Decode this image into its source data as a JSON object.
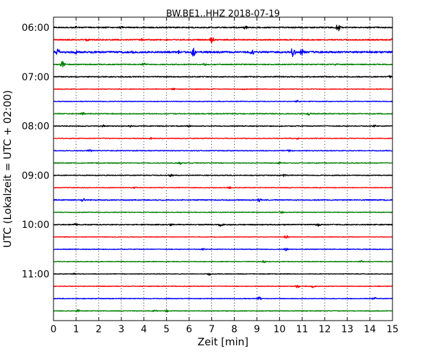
{
  "chart_data": {
    "type": "line",
    "title": "BW.BE1..HHZ 2018-07-19",
    "xlabel": "Zeit  [min]",
    "ylabel": "UTC (Lokalzeit = UTC + 02:00)",
    "xlim": [
      0,
      15
    ],
    "x_ticks": [
      "0",
      "1",
      "2",
      "3",
      "4",
      "5",
      "6",
      "7",
      "8",
      "9",
      "10",
      "11",
      "12",
      "13",
      "14",
      "15"
    ],
    "y_tick_labels": [
      "06:00",
      "07:00",
      "08:00",
      "09:00",
      "10:00",
      "11:00"
    ],
    "grid": "vertical dotted",
    "series_colors": [
      "#000000",
      "#ff0000",
      "#0000ff",
      "#008000"
    ],
    "traces": [
      {
        "start": "06:00",
        "color": "#000000",
        "amplitude": 0.12,
        "events": [
          [
            1.0,
            0.3
          ],
          [
            2.3,
            0.2
          ],
          [
            3.0,
            0.25
          ],
          [
            8.5,
            0.4
          ],
          [
            12.6,
            0.8
          ]
        ]
      },
      {
        "start": "06:15",
        "color": "#ff0000",
        "amplitude": 0.12,
        "events": [
          [
            1.5,
            0.4
          ],
          [
            3.9,
            0.3
          ],
          [
            7.0,
            0.6
          ],
          [
            15.0,
            0.3
          ]
        ]
      },
      {
        "start": "06:30",
        "color": "#0000ff",
        "amplitude": 0.18,
        "events": [
          [
            0.2,
            0.7
          ],
          [
            1.0,
            0.4
          ],
          [
            3.5,
            0.3
          ],
          [
            5.5,
            0.5
          ],
          [
            6.2,
            0.9
          ],
          [
            8.8,
            0.5
          ],
          [
            10.6,
            1.0
          ],
          [
            11.0,
            0.8
          ],
          [
            14.0,
            0.3
          ]
        ]
      },
      {
        "start": "06:45",
        "color": "#008000",
        "amplitude": 0.1,
        "events": [
          [
            0.4,
            0.7
          ],
          [
            4.0,
            0.3
          ],
          [
            6.7,
            0.3
          ],
          [
            12.5,
            0.2
          ]
        ]
      },
      {
        "start": "07:00",
        "color": "#000000",
        "amplitude": 0.1,
        "events": [
          [
            14.9,
            0.25
          ]
        ]
      },
      {
        "start": "07:15",
        "color": "#ff0000",
        "amplitude": 0.07,
        "events": [
          [
            5.3,
            0.2
          ],
          [
            8.4,
            0.2
          ]
        ]
      },
      {
        "start": "07:30",
        "color": "#0000ff",
        "amplitude": 0.07,
        "events": [
          [
            10.8,
            0.35
          ]
        ]
      },
      {
        "start": "07:45",
        "color": "#008000",
        "amplitude": 0.09,
        "events": [
          [
            1.3,
            0.3
          ],
          [
            11.3,
            0.35
          ]
        ]
      },
      {
        "start": "08:00",
        "color": "#000000",
        "amplitude": 0.09,
        "events": [
          [
            2.2,
            0.25
          ],
          [
            3.4,
            0.25
          ],
          [
            6.0,
            0.25
          ],
          [
            14.2,
            0.25
          ]
        ]
      },
      {
        "start": "08:15",
        "color": "#ff0000",
        "amplitude": 0.07,
        "events": [
          [
            4.3,
            0.2
          ],
          [
            10.8,
            0.2
          ]
        ]
      },
      {
        "start": "08:30",
        "color": "#0000ff",
        "amplitude": 0.08,
        "events": [
          [
            1.6,
            0.3
          ],
          [
            10.4,
            0.25
          ]
        ]
      },
      {
        "start": "08:45",
        "color": "#008000",
        "amplitude": 0.08,
        "events": [
          [
            5.6,
            0.3
          ],
          [
            10.0,
            0.25
          ]
        ]
      },
      {
        "start": "09:00",
        "color": "#000000",
        "amplitude": 0.08,
        "events": [
          [
            5.2,
            0.3
          ],
          [
            10.2,
            0.3
          ]
        ]
      },
      {
        "start": "09:15",
        "color": "#ff0000",
        "amplitude": 0.07,
        "events": [
          [
            3.6,
            0.2
          ],
          [
            7.8,
            0.25
          ]
        ]
      },
      {
        "start": "09:30",
        "color": "#0000ff",
        "amplitude": 0.1,
        "events": [
          [
            1.3,
            0.4
          ],
          [
            9.1,
            0.4
          ]
        ]
      },
      {
        "start": "09:45",
        "color": "#008000",
        "amplitude": 0.07,
        "events": [
          [
            10.1,
            0.3
          ]
        ]
      },
      {
        "start": "10:00",
        "color": "#000000",
        "amplitude": 0.1,
        "events": [
          [
            1.0,
            0.3
          ],
          [
            5.2,
            0.3
          ],
          [
            7.4,
            0.45
          ],
          [
            11.7,
            0.45
          ]
        ]
      },
      {
        "start": "10:15",
        "color": "#ff0000",
        "amplitude": 0.06,
        "events": [
          [
            10.3,
            0.35
          ]
        ]
      },
      {
        "start": "10:30",
        "color": "#0000ff",
        "amplitude": 0.07,
        "events": [
          [
            6.6,
            0.25
          ],
          [
            10.3,
            0.35
          ]
        ]
      },
      {
        "start": "10:45",
        "color": "#008000",
        "amplitude": 0.07,
        "events": [
          [
            9.3,
            0.25
          ],
          [
            13.6,
            0.3
          ]
        ]
      },
      {
        "start": "11:00",
        "color": "#000000",
        "amplitude": 0.06,
        "events": [
          [
            0.9,
            0.2
          ],
          [
            6.9,
            0.3
          ]
        ]
      },
      {
        "start": "11:15",
        "color": "#ff0000",
        "amplitude": 0.07,
        "events": [
          [
            10.8,
            0.35
          ],
          [
            11.5,
            0.3
          ]
        ]
      },
      {
        "start": "11:30",
        "color": "#0000ff",
        "amplitude": 0.07,
        "events": [
          [
            9.1,
            0.35
          ],
          [
            14.2,
            0.3
          ]
        ]
      },
      {
        "start": "11:45",
        "color": "#008000",
        "amplitude": 0.07,
        "events": [
          [
            1.1,
            0.3
          ],
          [
            4.5,
            0.25
          ],
          [
            5.0,
            0.25
          ]
        ]
      }
    ]
  }
}
